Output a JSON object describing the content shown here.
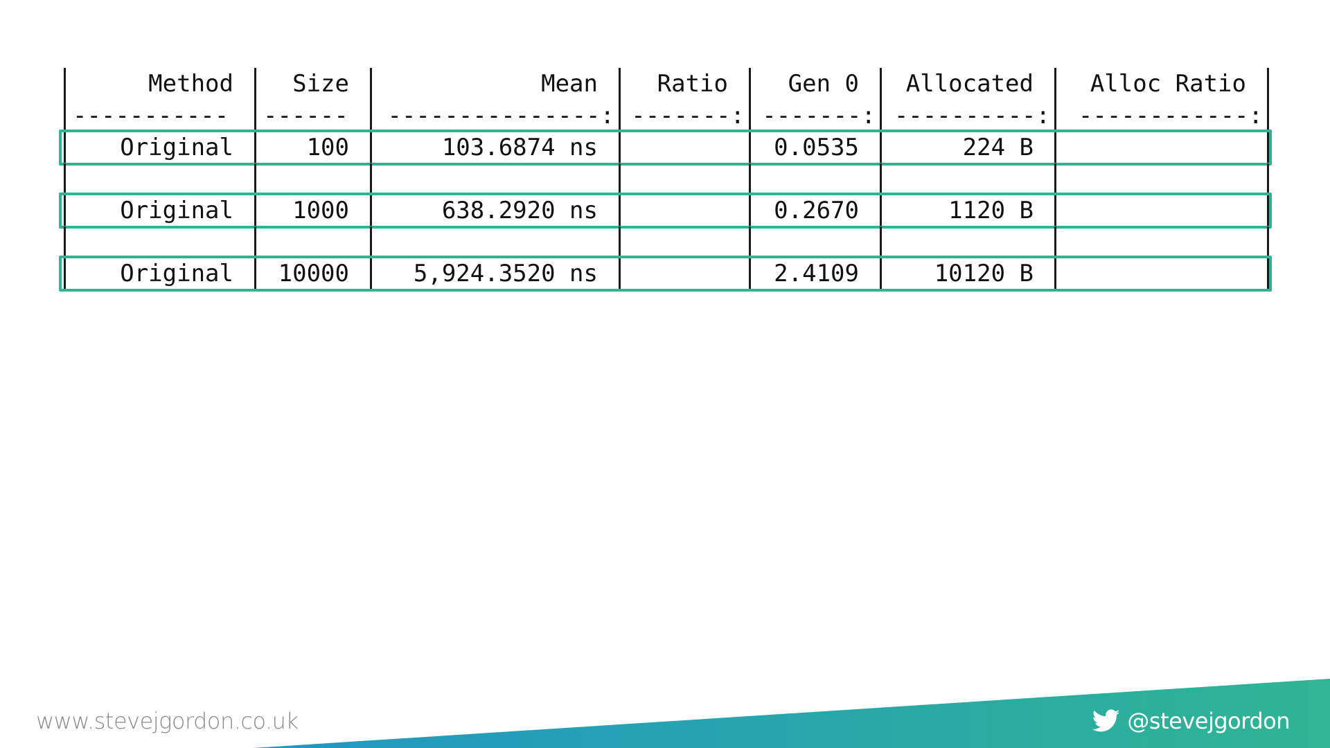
{
  "table": {
    "headers": [
      "Method",
      "Size",
      "Mean",
      "Ratio",
      "Gen 0",
      "Allocated",
      "Alloc Ratio"
    ],
    "separators": [
      "-----------",
      "------",
      "---------------:",
      "-------:",
      "-------:",
      "----------:",
      "------------:"
    ],
    "rows": [
      [
        "Original",
        "100",
        "103.6874 ns",
        "",
        "0.0535",
        "224 B",
        ""
      ],
      [
        "Original",
        "1000",
        "638.2920 ns",
        "",
        "0.2670",
        "1120 B",
        ""
      ],
      [
        "Original",
        "10000",
        "5,924.3520 ns",
        "",
        "2.4109",
        "10120 B",
        ""
      ]
    ]
  },
  "footer": {
    "url": "www.stevejgordon.co.uk",
    "handle": "@stevejgordon",
    "icon": "twitter-bird-icon",
    "gradient_start": "#2196c4",
    "gradient_end": "#2fb593"
  }
}
